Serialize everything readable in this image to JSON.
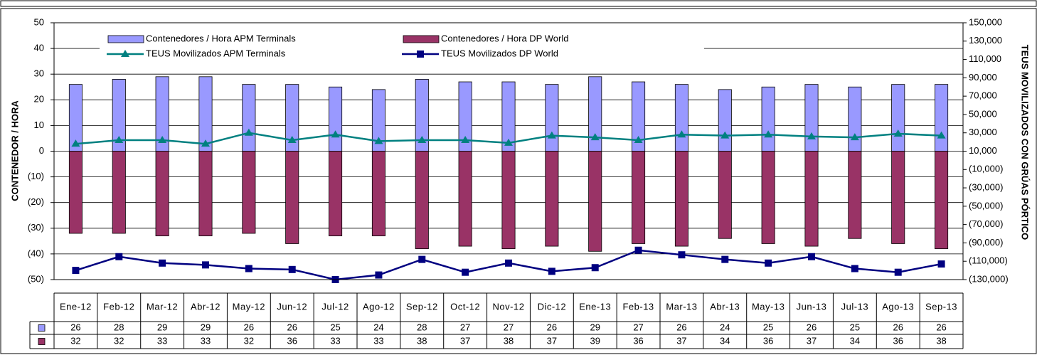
{
  "chart_data": {
    "type": "bar",
    "y_label": "CONTENEDOR / HORA",
    "y2_label": "TEUS MOVILIZADOS CON GRÚAS PÓRTICO",
    "categories": [
      "Ene-12",
      "Feb-12",
      "Mar-12",
      "Abr-12",
      "May-12",
      "Jun-12",
      "Jul-12",
      "Ago-12",
      "Sep-12",
      "Oct-12",
      "Nov-12",
      "Dic-12",
      "Ene-13",
      "Feb-13",
      "Mar-13",
      "Abr-13",
      "May-13",
      "Jun-13",
      "Jul-13",
      "Ago-13",
      "Sep-13"
    ],
    "ylim": [
      -50,
      50
    ],
    "yticks": [
      {
        "value": -50,
        "label": "(50)"
      },
      {
        "value": -40,
        "label": "(40)"
      },
      {
        "value": -30,
        "label": "(30)"
      },
      {
        "value": -20,
        "label": "(20)"
      },
      {
        "value": -10,
        "label": "(10)"
      },
      0,
      10,
      20,
      30,
      40,
      50
    ],
    "y2lim": [
      -130000,
      150000
    ],
    "y2ticks": [
      {
        "value": -130000,
        "label": "(130,000)"
      },
      {
        "value": -110000,
        "label": "(110,000)"
      },
      {
        "value": -90000,
        "label": "(90,000)"
      },
      {
        "value": -70000,
        "label": "(70,000)"
      },
      {
        "value": -50000,
        "label": "(50,000)"
      },
      {
        "value": -30000,
        "label": "(30,000)"
      },
      {
        "value": -10000,
        "label": "(10,000)"
      },
      {
        "value": 10000,
        "label": "10,000"
      },
      {
        "value": 30000,
        "label": "30,000"
      },
      {
        "value": 50000,
        "label": "50,000"
      },
      {
        "value": 70000,
        "label": "70,000"
      },
      {
        "value": 90000,
        "label": "90,000"
      },
      {
        "value": 110000,
        "label": "110,000"
      },
      {
        "value": 130000,
        "label": "130,000"
      },
      {
        "value": 150000,
        "label": "150,000"
      }
    ],
    "grid": true,
    "legend": "top",
    "series": [
      {
        "name": "Contenedores / Hora APM Terminals",
        "type": "bar",
        "color": "#9999ff",
        "values": [
          26,
          28,
          29,
          29,
          26,
          26,
          25,
          24,
          28,
          27,
          27,
          26,
          29,
          27,
          26,
          24,
          25,
          26,
          25,
          26,
          26
        ]
      },
      {
        "name": "Contenedores / Hora DP World",
        "type": "bar",
        "color": "#993366",
        "values": [
          -32,
          -32,
          -33,
          -33,
          -32,
          -36,
          -33,
          -33,
          -38,
          -37,
          -38,
          -37,
          -39,
          -36,
          -37,
          -34,
          -36,
          -37,
          -34,
          -36,
          -38
        ],
        "value_labels": [
          "32",
          "32",
          "33",
          "33",
          "32",
          "36",
          "33",
          "33",
          "38",
          "37",
          "38",
          "37",
          "39",
          "36",
          "37",
          "34",
          "36",
          "37",
          "34",
          "36",
          "38"
        ]
      },
      {
        "name": "TEUS Movilizados APM Terminals",
        "type": "line",
        "marker": "triangle",
        "axis": "y2",
        "color": "#008080",
        "values": [
          18000,
          22000,
          22000,
          18000,
          30000,
          22000,
          28000,
          21000,
          22000,
          22000,
          19000,
          27000,
          25000,
          22000,
          28000,
          27000,
          28000,
          26000,
          25000,
          29000,
          27000
        ]
      },
      {
        "name": "TEUS Movilizados DP World",
        "type": "line",
        "marker": "square",
        "axis": "y2",
        "color": "#000080",
        "values": [
          -120000,
          -105000,
          -112000,
          -114000,
          -118000,
          -119000,
          -130000,
          -125000,
          -108000,
          -122000,
          -112000,
          -121000,
          -117000,
          -98000,
          -103000,
          -108000,
          -112000,
          -105000,
          -118000,
          -122000,
          -113000
        ]
      }
    ]
  }
}
